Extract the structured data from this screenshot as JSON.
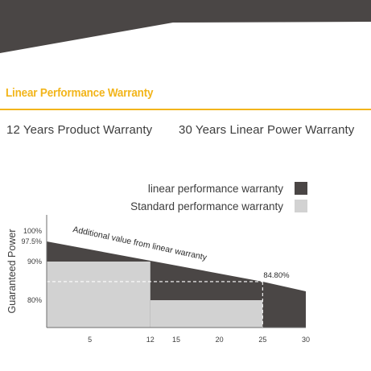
{
  "header": {
    "title": "Linear Performance Warranty",
    "product_warranty": "12 Years Product Warranty",
    "power_warranty": "30 Years Linear Power Warranty"
  },
  "colors": {
    "accent": "#f2b51b",
    "dark": "#4a4645",
    "light": "#d2d2d2",
    "text": "#3d3d3d"
  },
  "chart_data": {
    "type": "area",
    "ylabel": "Guaranteed Power",
    "xlabel": "",
    "xlim": [
      0,
      30
    ],
    "ylim": [
      76,
      100
    ],
    "x_ticks": [
      5,
      12,
      15,
      20,
      25,
      30
    ],
    "y_ticks": [
      {
        "value": 100,
        "label": "100%"
      },
      {
        "value": 97.5,
        "label": "97.5%"
      },
      {
        "value": 90,
        "label": "90%"
      },
      {
        "value": 80,
        "label": "80%"
      }
    ],
    "legend": {
      "position": "top-right",
      "entries": [
        {
          "label": "linear performance warranty",
          "color": "#4a4645"
        },
        {
          "label": "Standard performance warranty",
          "color": "#d2d2d2"
        }
      ]
    },
    "series": [
      {
        "name": "linear performance warranty",
        "type": "line",
        "x": [
          0,
          25,
          30
        ],
        "y": [
          97.5,
          84.8,
          82.3
        ]
      },
      {
        "name": "Standard performance warranty",
        "type": "step",
        "x": [
          0,
          12,
          25
        ],
        "y": [
          90,
          80,
          80
        ]
      }
    ],
    "annotations": [
      {
        "text": "Additional value from  linear warranty"
      },
      {
        "text": "84.80%",
        "x": 25,
        "y": 84.8
      }
    ]
  }
}
